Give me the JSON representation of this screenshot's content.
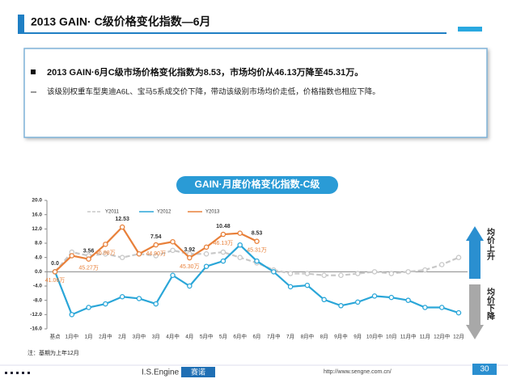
{
  "header": {
    "title": "2013 GAIN· C级价格变化指数—6月"
  },
  "summary": {
    "points": [
      "2013 GAIN·6月C级市场价格变化指数为8.53，市场均价从46.13万降至45.31万。",
      "该级别权重车型奥迪A6L、宝马5系成交价下降，带动该级别市场均价走低，价格指数也相应下降。"
    ]
  },
  "chart_data": {
    "type": "line",
    "title": "GAIN·月度价格变化指数-C级",
    "categories": [
      "基点",
      "1月中",
      "1月",
      "2月中",
      "2月",
      "3月中",
      "3月",
      "4月中",
      "4月",
      "5月中",
      "5月",
      "6月中",
      "6月",
      "7月中",
      "7月",
      "8月中",
      "8月",
      "9月中",
      "9月",
      "10月中",
      "10月",
      "11月中",
      "11月",
      "12月中",
      "12月"
    ],
    "series": [
      {
        "name": "Y2011",
        "color": "#c8c8c8",
        "dashed": true,
        "values": [
          0,
          5.5,
          4.5,
          5,
          4,
          5,
          4.5,
          6,
          5,
          5,
          5.5,
          4,
          2.5,
          0.5,
          -0.5,
          -0.5,
          -1,
          -1,
          -0.5,
          0,
          -0.5,
          0,
          0.5,
          2,
          4
        ]
      },
      {
        "name": "Y2012",
        "color": "#2aa6d8",
        "values": [
          0,
          -12,
          -10,
          -9,
          -7,
          -7.5,
          -9,
          -1,
          -4,
          1.5,
          3,
          7.5,
          3,
          0,
          -4.2,
          -3.8,
          -7.8,
          -9.5,
          -8.5,
          -6.8,
          -7.2,
          -8,
          -10,
          -10,
          -11.5
        ]
      },
      {
        "name": "Y2013",
        "color": "#e8803a",
        "values": [
          0,
          4.5,
          3.56,
          7.7,
          12.53,
          5,
          7.54,
          8.4,
          3.92,
          6.9,
          10.48,
          10.8,
          8.53,
          null,
          null,
          null,
          null,
          null,
          null,
          null,
          null,
          null,
          null,
          null,
          null
        ],
        "value_labels": [
          "0.0",
          null,
          "3.56",
          null,
          "12.53",
          null,
          "7.54",
          null,
          "3.92",
          null,
          "10.48",
          null,
          "8.53",
          null,
          null,
          null,
          null,
          null,
          null,
          null,
          null,
          null,
          null,
          null,
          null
        ],
        "price_labels": [
          "41.06万",
          null,
          "45.27万",
          "46.98万",
          null,
          null,
          "44.90万",
          null,
          "45.30万",
          null,
          "46.13万",
          null,
          "45.31万",
          null,
          null,
          null,
          null,
          null,
          null,
          null,
          null,
          null,
          null,
          null,
          null
        ]
      }
    ],
    "ylim": [
      -16,
      20
    ],
    "yticks": [
      {
        "value": -16,
        "label": "-16.0"
      },
      {
        "value": -12,
        "label": "-12.0"
      },
      {
        "value": -8,
        "label": "-8.0"
      },
      {
        "value": -4,
        "label": "-4.0"
      },
      {
        "value": 0,
        "label": "0.0"
      },
      {
        "value": 4,
        "label": "4.0"
      },
      {
        "value": 8,
        "label": "8.0"
      },
      {
        "value": 12,
        "label": "12.0"
      },
      {
        "value": 16,
        "label": "16.0"
      },
      {
        "value": 20,
        "label": "20.0"
      }
    ],
    "legend": "top",
    "up_label": "均价上升",
    "down_label": "均价下降",
    "note": "注：基期为上年12月"
  },
  "footer": {
    "brand": "I.S.Engine",
    "logo": "赛诺",
    "url": "http://www.sengne.com.cn/",
    "page": "30"
  }
}
